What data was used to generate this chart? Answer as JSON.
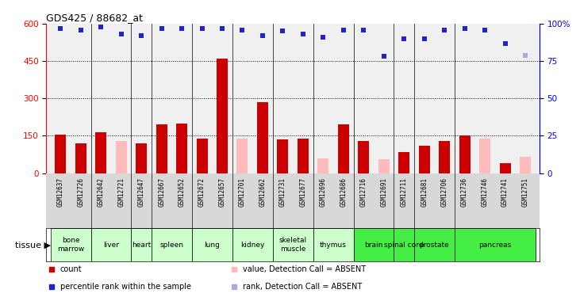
{
  "title": "GDS425 / 88682_at",
  "samples": [
    "GSM12637",
    "GSM12726",
    "GSM12642",
    "GSM12721",
    "GSM12647",
    "GSM12667",
    "GSM12652",
    "GSM12672",
    "GSM12657",
    "GSM12701",
    "GSM12662",
    "GSM12731",
    "GSM12677",
    "GSM12696",
    "GSM12686",
    "GSM12716",
    "GSM12691",
    "GSM12711",
    "GSM12681",
    "GSM12706",
    "GSM12736",
    "GSM12746",
    "GSM12741",
    "GSM12751"
  ],
  "tissues": [
    {
      "name": "bone\nmarrow",
      "start": 0,
      "end": 2,
      "dark": false
    },
    {
      "name": "liver",
      "start": 2,
      "end": 4,
      "dark": false
    },
    {
      "name": "heart",
      "start": 4,
      "end": 5,
      "dark": false
    },
    {
      "name": "spleen",
      "start": 5,
      "end": 7,
      "dark": false
    },
    {
      "name": "lung",
      "start": 7,
      "end": 9,
      "dark": false
    },
    {
      "name": "kidney",
      "start": 9,
      "end": 11,
      "dark": false
    },
    {
      "name": "skeletal\nmuscle",
      "start": 11,
      "end": 13,
      "dark": false
    },
    {
      "name": "thymus",
      "start": 13,
      "end": 15,
      "dark": false
    },
    {
      "name": "brain",
      "start": 15,
      "end": 17,
      "dark": true
    },
    {
      "name": "spinal cord",
      "start": 17,
      "end": 18,
      "dark": true
    },
    {
      "name": "prostate",
      "start": 18,
      "end": 20,
      "dark": true
    },
    {
      "name": "pancreas",
      "start": 20,
      "end": 24,
      "dark": true
    }
  ],
  "bar_values": [
    155,
    120,
    165,
    130,
    120,
    195,
    200,
    140,
    460,
    140,
    285,
    135,
    140,
    60,
    195,
    130,
    55,
    85,
    110,
    130,
    150,
    140,
    40,
    65
  ],
  "bar_absent": [
    false,
    false,
    false,
    true,
    false,
    false,
    false,
    false,
    false,
    true,
    false,
    false,
    false,
    true,
    false,
    false,
    true,
    false,
    false,
    false,
    false,
    true,
    false,
    true
  ],
  "rank_values": [
    97,
    96,
    98,
    93,
    92,
    97,
    97,
    97,
    97,
    96,
    92,
    95,
    93,
    91,
    96,
    96,
    78,
    90,
    90,
    96,
    97,
    96,
    87,
    79
  ],
  "rank_absent": [
    false,
    false,
    false,
    false,
    false,
    false,
    false,
    false,
    false,
    false,
    false,
    false,
    false,
    false,
    false,
    false,
    false,
    false,
    false,
    false,
    false,
    false,
    false,
    true
  ],
  "ylim_left": [
    0,
    600
  ],
  "ylim_right": [
    0,
    100
  ],
  "yticks_left": [
    0,
    150,
    300,
    450,
    600
  ],
  "yticks_right": [
    0,
    25,
    50,
    75,
    100
  ],
  "bar_color_present": "#cc0000",
  "bar_color_absent": "#ffbbbb",
  "rank_color_present": "#2222cc",
  "rank_color_absent": "#aaaadd",
  "tissue_light": "#ccffcc",
  "tissue_dark": "#44ee44",
  "sample_bg": "#d8d8d8",
  "plot_bg": "#f0f0f0"
}
